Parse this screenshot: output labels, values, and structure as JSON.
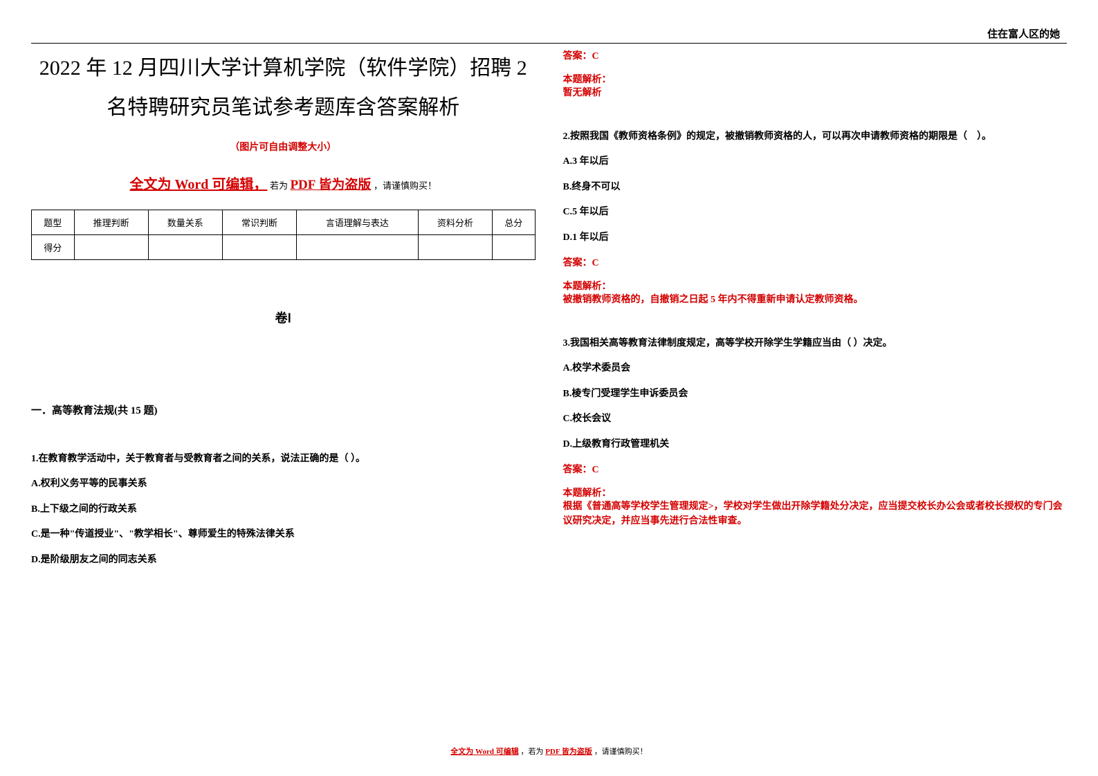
{
  "header": {
    "right_text": "住在富人区的她"
  },
  "left": {
    "title": "2022 年 12 月四川大学计算机学院（软件学院）招聘 2 名特聘研究员笔试参考题库含答案解析",
    "subtitle": "（图片可自由调整大小）",
    "warning": {
      "part1": "全文为 Word 可编辑，",
      "part2": "若为",
      "part3": "PDF 皆为盗版",
      "part4": "，请谨慎购买！"
    },
    "table": {
      "headers": [
        "题型",
        "推理判断",
        "数量关系",
        "常识判断",
        "言语理解与表达",
        "资料分析",
        "总分"
      ],
      "score_label": "得分"
    },
    "juan": "卷Ⅰ",
    "section": "一．高等教育法规(共 15 题)",
    "q1": {
      "stem": "1.在教育教学活动中，关于教育者与受教育者之间的关系，说法正确的是（ ）。",
      "A": "A.权利义务平等的民事关系",
      "B": "B.上下级之间的行政关系",
      "C": "C.是一种\"传道授业\"、\"教学相长\"、尊师爱生的特殊法律关系",
      "D": "D.是阶级朋友之间的同志关系"
    }
  },
  "right": {
    "q1_answer": "答案：C",
    "q1_analysis_label": "本题解析：",
    "q1_analysis_text": "暂无解析",
    "q2": {
      "stem": "2.按照我国《教师资格条例》的规定，被撤销教师资格的人，可以再次申请教师资格的期限是（　）。",
      "A": "A.3 年以后",
      "B": "B.终身不可以",
      "C": "C.5 年以后",
      "D": "D.1 年以后",
      "answer": "答案：C",
      "analysis_label": "本题解析：",
      "analysis_text": "被撤销教师资格的，自撤销之日起 5 年内不得重新申请认定教师资格。"
    },
    "q3": {
      "stem": "3.我国相关高等教育法律制度规定，高等学校开除学生学籍应当由（ ）决定。",
      "A": "A.校学术委员会",
      "B": "B.棱专门受理学生申诉委员会",
      "C": "C.校长会议",
      "D": "D.上级教育行政管理机关",
      "answer": "答案：C",
      "analysis_label": "本题解析：",
      "analysis_text": "根据《普通高等学校学生管理规定>，学校对学生做出开除学籍处分决定，应当提交校长办公会或者校长授权的专门会议研究决定，并应当事先进行合法性审查。"
    }
  },
  "footer": {
    "part1": "全文为 Word 可编辑",
    "part2": "，若为",
    "part3": "PDF 皆为盗版",
    "part4": "，请谨慎购买！"
  },
  "colors": {
    "red": "#d40000",
    "black": "#000000",
    "background": "#ffffff"
  },
  "typography": {
    "title_fontsize": 30,
    "body_fontsize": 14,
    "subtitle_fontsize": 14,
    "footer_fontsize": 11
  }
}
